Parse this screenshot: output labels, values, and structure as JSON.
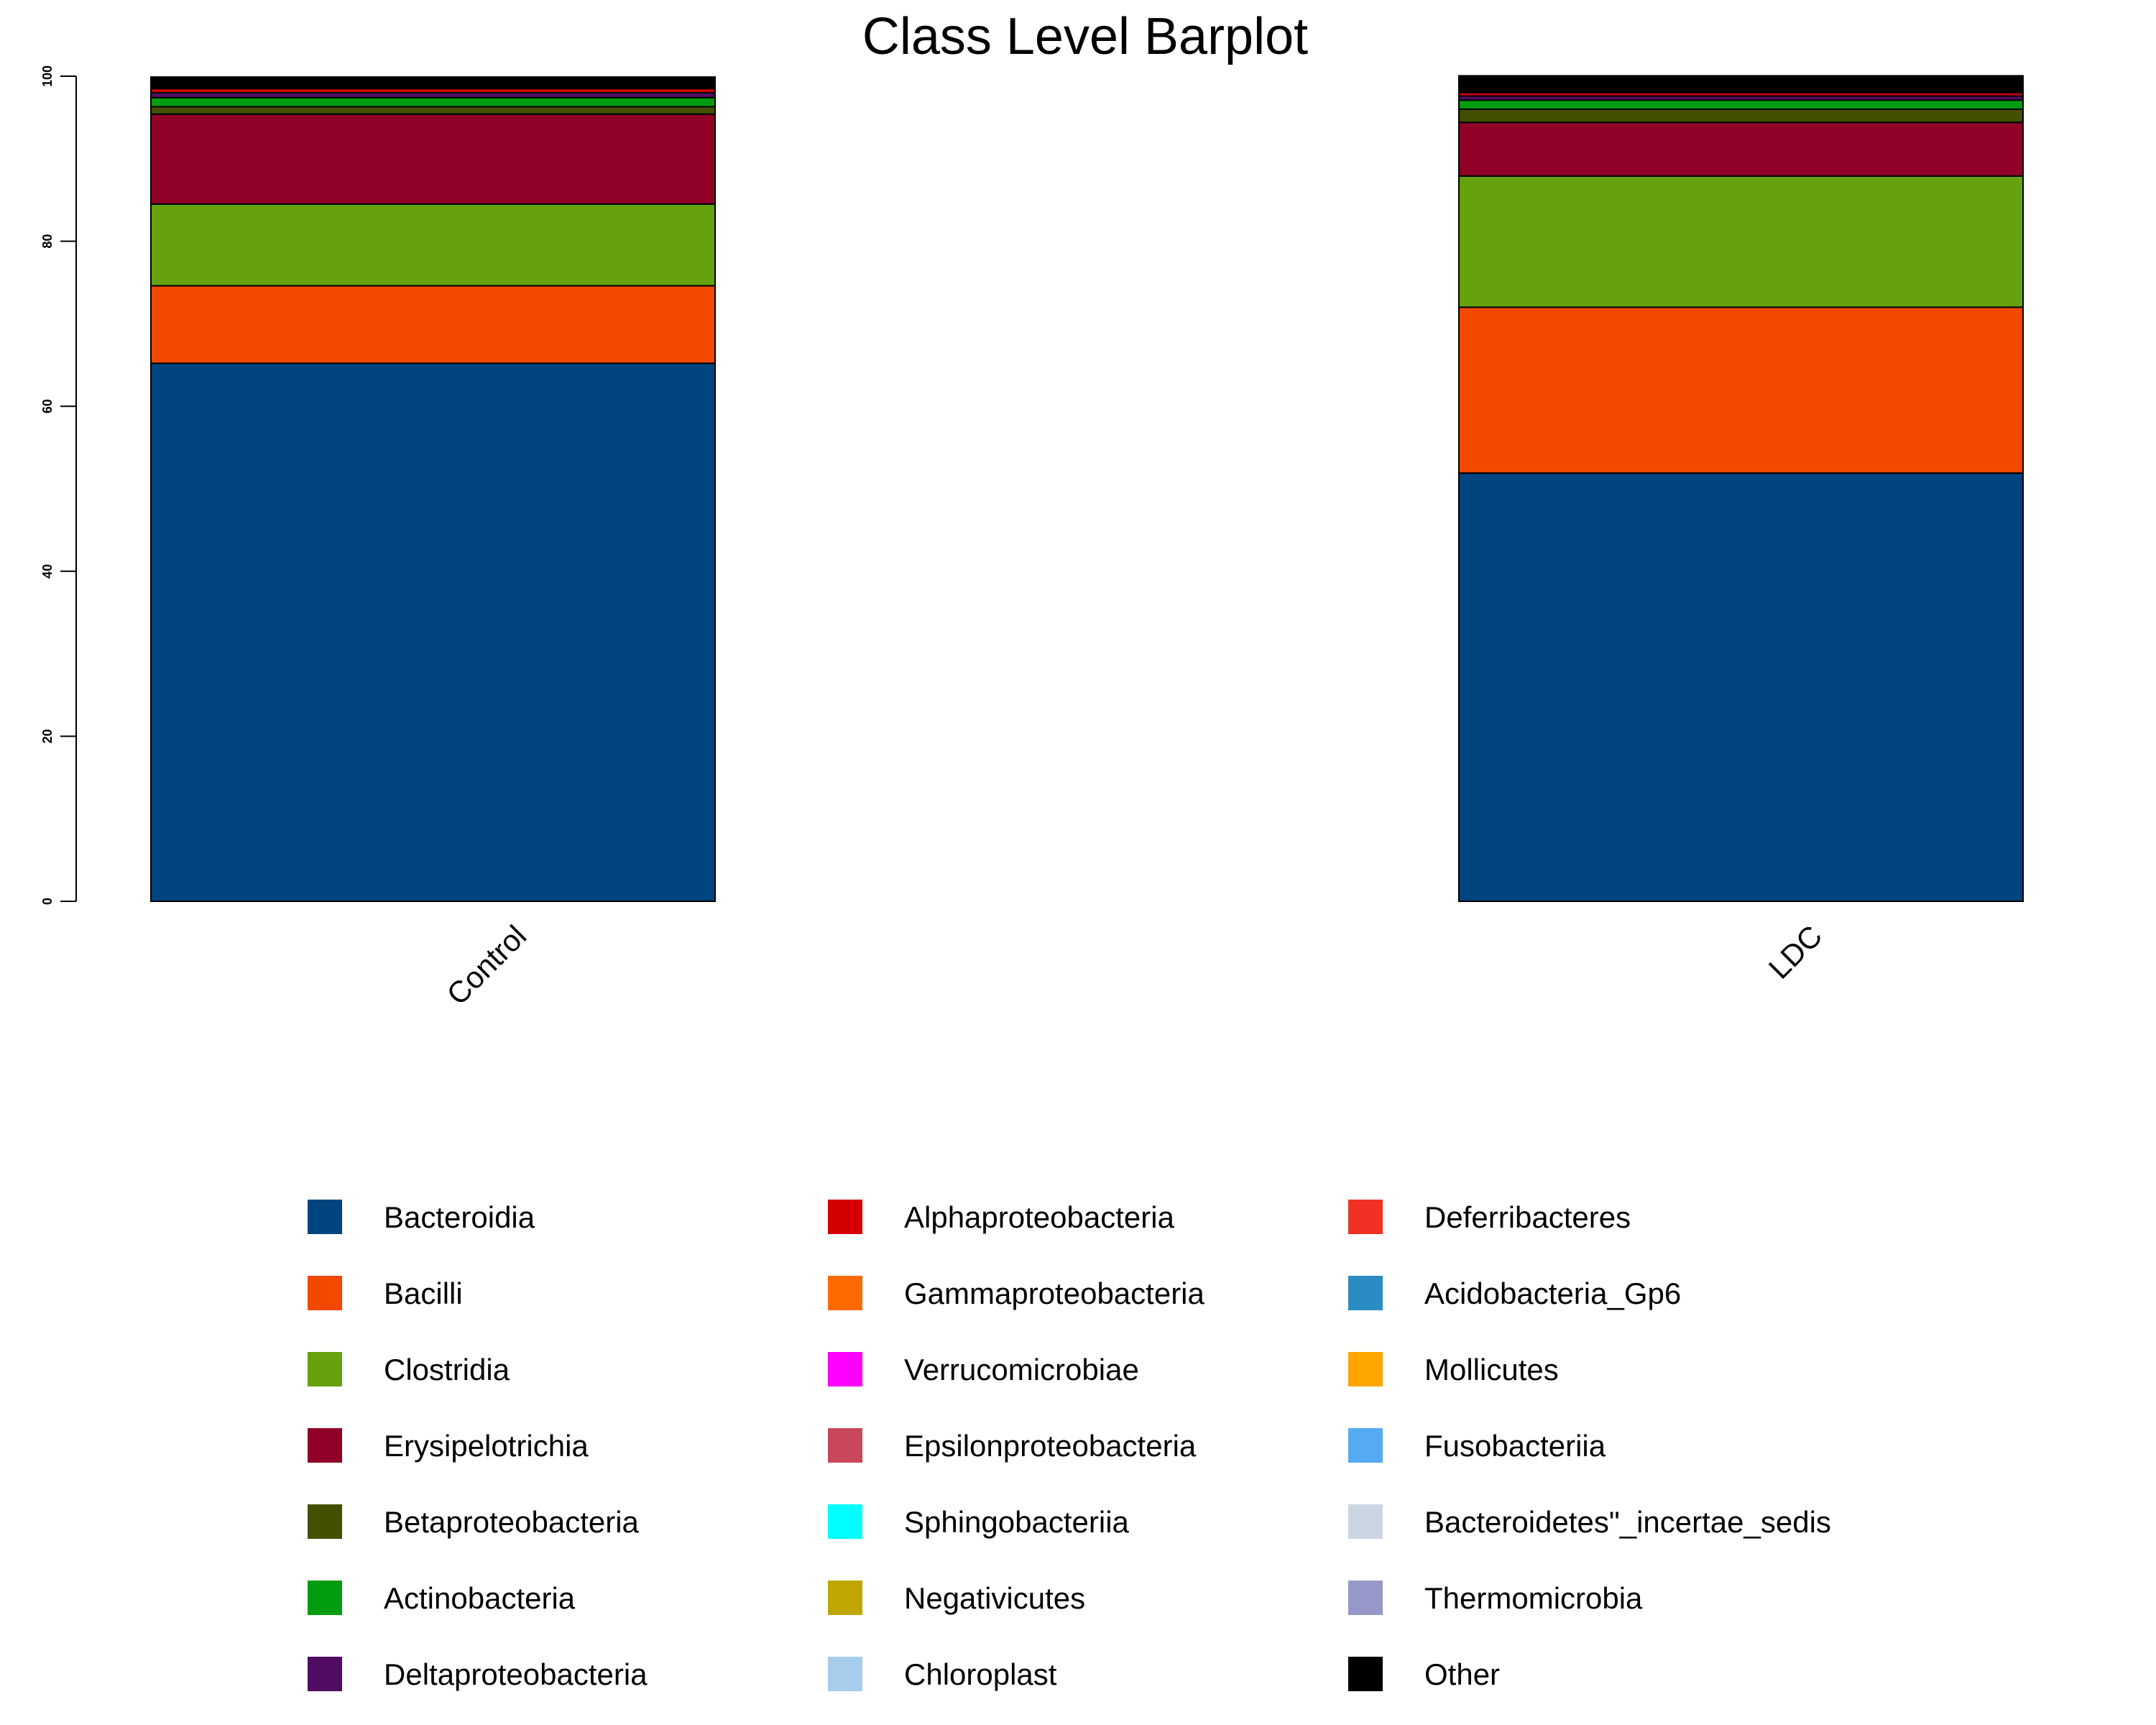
{
  "chart_data": {
    "type": "bar",
    "stacked": true,
    "title": "Class Level Barplot",
    "xlabel": "",
    "ylabel": "",
    "ylim": [
      0,
      100
    ],
    "yticks": [
      0,
      20,
      40,
      60,
      80,
      100
    ],
    "categories": [
      "Control",
      "LDC"
    ],
    "grid": false,
    "legend_position": "bottom",
    "legend_columns": 3,
    "series": [
      {
        "name": "Bacteroidia",
        "color": "#00457F",
        "values": [
          65.2,
          51.9
        ]
      },
      {
        "name": "Bacilli",
        "color": "#F24800",
        "values": [
          9.4,
          20.1
        ]
      },
      {
        "name": "Clostridia",
        "color": "#66A20D",
        "values": [
          9.9,
          15.9
        ]
      },
      {
        "name": "Erysipelotrichia",
        "color": "#900027",
        "values": [
          10.9,
          6.5
        ]
      },
      {
        "name": "Betaproteobacteria",
        "color": "#444F00",
        "values": [
          0.9,
          1.6
        ]
      },
      {
        "name": "Actinobacteria",
        "color": "#039C10",
        "values": [
          1.1,
          1.1
        ]
      },
      {
        "name": "Deltaproteobacteria",
        "color": "#4F0C61",
        "values": [
          0.6,
          0.5
        ]
      },
      {
        "name": "Alphaproteobacteria",
        "color": "#D40000",
        "values": [
          0.5,
          0.4
        ]
      },
      {
        "name": "Gammaproteobacteria",
        "color": "#FF6A00",
        "values": [
          0.1,
          0.1
        ]
      },
      {
        "name": "Verrucomicrobiae",
        "color": "#FF00FF",
        "values": [
          0.1,
          0.1
        ]
      },
      {
        "name": "Epsilonproteobacteria",
        "color": "#C8475B",
        "values": [
          0.1,
          0.1
        ]
      },
      {
        "name": "Sphingobacteriia",
        "color": "#00FFFF",
        "values": [
          0.05,
          0.05
        ]
      },
      {
        "name": "Negativicutes",
        "color": "#BFA600",
        "values": [
          0.05,
          0.05
        ]
      },
      {
        "name": "Chloroplast",
        "color": "#A6CDEB",
        "values": [
          0.05,
          0.05
        ]
      },
      {
        "name": "Deferribacteres",
        "color": "#F03123",
        "values": [
          0.1,
          0.1
        ]
      },
      {
        "name": "Acidobacteria_Gp6",
        "color": "#2B8CC4",
        "values": [
          0.05,
          0.05
        ]
      },
      {
        "name": "Mollicutes",
        "color": "#FFA500",
        "values": [
          0.05,
          0.05
        ]
      },
      {
        "name": "Fusobacteriia",
        "color": "#55AAF2",
        "values": [
          0.05,
          0.05
        ]
      },
      {
        "name": "Bacteroidetes\"_incertae_sedis",
        "color": "#CBD6E2",
        "values": [
          0.05,
          0.05
        ]
      },
      {
        "name": "Thermomicrobia",
        "color": "#9598C8",
        "values": [
          0.05,
          0.05
        ]
      },
      {
        "name": "Other",
        "color": "#000000",
        "values": [
          0.6,
          1.25
        ]
      }
    ]
  }
}
